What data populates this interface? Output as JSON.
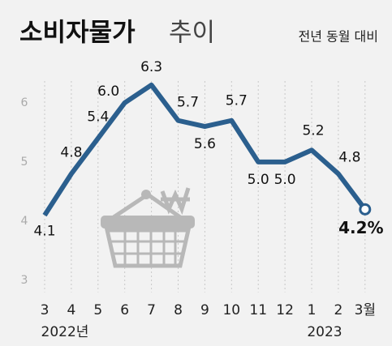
{
  "chart_data": {
    "type": "line",
    "title": "소비자물가",
    "title_suffix": "추이",
    "subtitle": "전년 동월 대비",
    "categories": [
      "3",
      "4",
      "5",
      "6",
      "7",
      "8",
      "9",
      "10",
      "11",
      "12",
      "1",
      "2",
      "3월"
    ],
    "year_labels": [
      "2022년",
      "2023"
    ],
    "series": [
      {
        "name": "소비자물가",
        "color": "#2b5f8e",
        "values": [
          4.1,
          4.8,
          5.4,
          6.0,
          6.3,
          5.7,
          5.6,
          5.7,
          5.0,
          5.0,
          5.2,
          4.8,
          4.2
        ],
        "value_labels": [
          "4.1",
          "4.8",
          "5.4",
          "6.0",
          "6.3",
          "5.7",
          "5.6",
          "5.7",
          "5.0",
          "5.0",
          "5.2",
          "4.8",
          "4.2%"
        ]
      }
    ],
    "ylim": [
      2.8,
      6.6
    ],
    "yticks": [
      3,
      4,
      5,
      6
    ],
    "grid": true
  }
}
